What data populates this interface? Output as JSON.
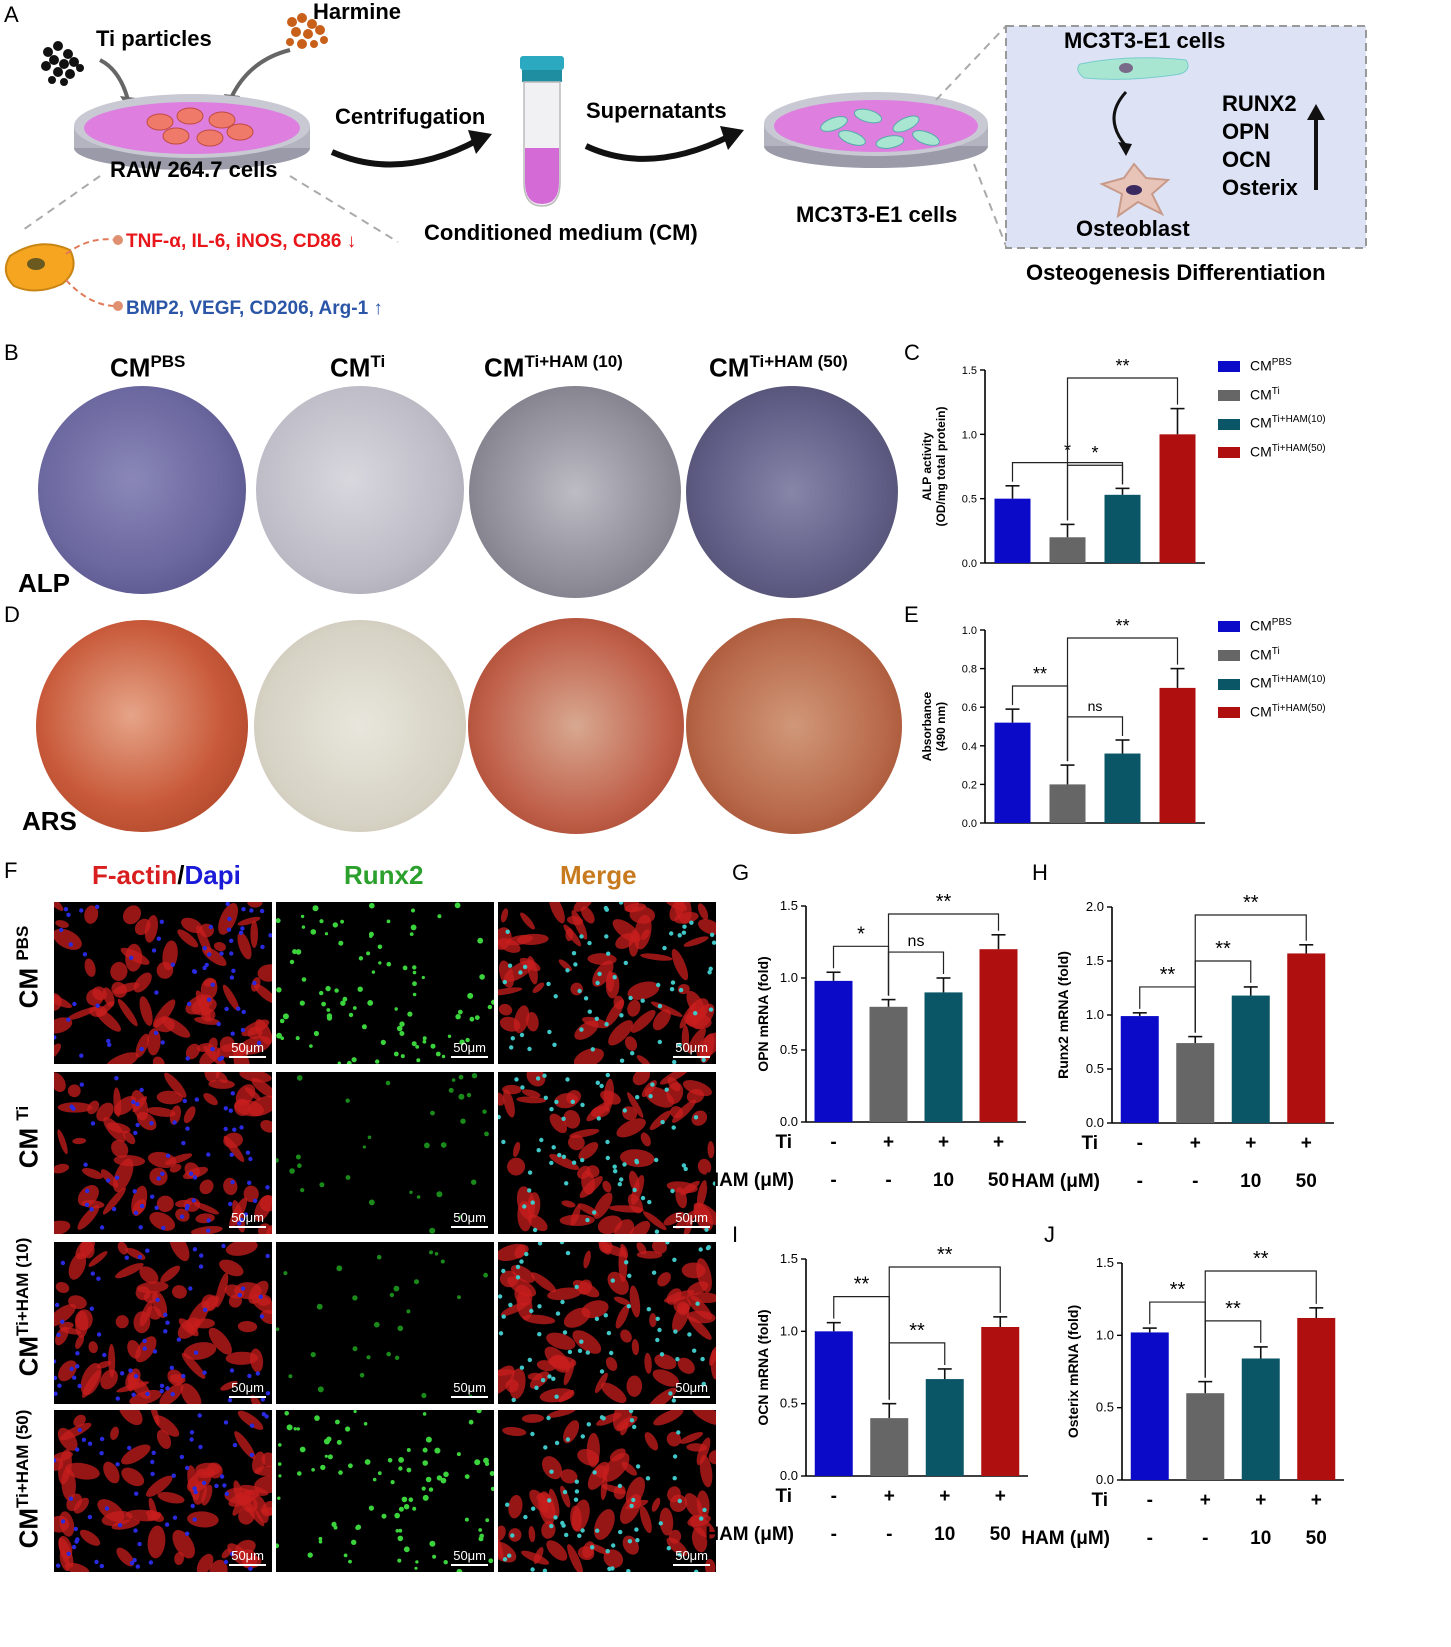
{
  "panels": {
    "A": "A",
    "B": "B",
    "C": "C",
    "D": "D",
    "E": "E",
    "F": "F",
    "G": "G",
    "H": "H",
    "I": "I",
    "J": "J"
  },
  "schematic": {
    "ti_particles": "Ti particles",
    "harmine": "Harmine",
    "raw_cells": "RAW 264.7 cells",
    "centrifugation": "Centrifugation",
    "supernatants": "Supernatants",
    "cm_label": "Conditioned medium (CM)",
    "mc3t3_dish": "MC3T3-E1 cells",
    "mc3t3_box": "MC3T3-E1 cells",
    "osteoblast": "Osteoblast",
    "markers": [
      "RUNX2",
      "OPN",
      "OCN",
      "Osterix"
    ],
    "osteo_diff": "Osteogenesis Differentiation",
    "down_markers": "TNF-α, IL-6, iNOS, CD86 ↓",
    "up_markers": "BMP2, VEGF, CD206, Arg-1 ↑",
    "colors": {
      "down": "#e8161b",
      "up": "#2b55a6",
      "box_bg": "#dde3f5"
    }
  },
  "groups": [
    {
      "base": "CM",
      "sup": "PBS"
    },
    {
      "base": "CM",
      "sup": "Ti"
    },
    {
      "base": "CM",
      "sup": "Ti+HAM (10)"
    },
    {
      "base": "CM",
      "sup": "Ti+HAM (50)"
    }
  ],
  "stain_labels": {
    "alp": "ALP",
    "ars": "ARS"
  },
  "if_headers": {
    "factin": "F-actin",
    "slash": "/",
    "dapi": "Dapi",
    "runx2": "Runx2",
    "merge": "Merge"
  },
  "if_rows": [
    {
      "base": "CM",
      "sup": "PBS"
    },
    {
      "base": "CM",
      "sup": "Ti"
    },
    {
      "base": "CM",
      "sup": "Ti+HAM (10)"
    },
    {
      "base": "CM",
      "sup": "Ti+HAM (50)"
    }
  ],
  "scale_bar": "50μm",
  "legend": [
    {
      "base": "CM",
      "sup": "PBS",
      "color": "#0a0ac8"
    },
    {
      "base": "CM",
      "sup": "Ti",
      "color": "#666666"
    },
    {
      "base": "CM",
      "sup": "Ti+HAM(10)",
      "color": "#0a5566"
    },
    {
      "base": "CM",
      "sup": "Ti+HAM(50)",
      "color": "#b00f0f"
    }
  ],
  "row_labels": {
    "ti": "Ti",
    "ham": "HAM (μM)",
    "ti_vals": [
      "-",
      "+",
      "+",
      "+"
    ],
    "ham_vals": [
      "-",
      "-",
      "10",
      "50"
    ]
  },
  "chart_data": [
    {
      "id": "C",
      "type": "bar",
      "ylabel_lines": [
        "ALP activity",
        "(OD/mg total protein)"
      ],
      "ylim": [
        0,
        1.5
      ],
      "yticks": [
        "0.0",
        "0.5",
        "1.0",
        "1.5"
      ],
      "values": [
        0.5,
        0.2,
        0.53,
        1.0
      ],
      "errors": [
        0.1,
        0.1,
        0.05,
        0.2
      ],
      "brackets": [
        {
          "a": 0,
          "b": 2,
          "label": "*"
        },
        {
          "a": 1,
          "b": 2,
          "label": "*"
        },
        {
          "a": 1,
          "b": 3,
          "label": "**"
        }
      ]
    },
    {
      "id": "E",
      "type": "bar",
      "ylabel_lines": [
        "Absorbance",
        "(490 nm)"
      ],
      "ylim": [
        0,
        1.0
      ],
      "yticks": [
        "0.0",
        "0.2",
        "0.4",
        "0.6",
        "0.8",
        "1.0"
      ],
      "values": [
        0.52,
        0.2,
        0.36,
        0.7
      ],
      "errors": [
        0.07,
        0.1,
        0.07,
        0.1
      ],
      "brackets": [
        {
          "a": 0,
          "b": 1,
          "label": "**"
        },
        {
          "a": 1,
          "b": 2,
          "label": "ns"
        },
        {
          "a": 1,
          "b": 3,
          "label": "**"
        }
      ]
    },
    {
      "id": "G",
      "type": "bar",
      "ylabel_lines": [
        "OPN mRNA (fold)"
      ],
      "ylim": [
        0,
        1.5
      ],
      "yticks": [
        "0.0",
        "0.5",
        "1.0",
        "1.5"
      ],
      "values": [
        0.98,
        0.8,
        0.9,
        1.2
      ],
      "errors": [
        0.06,
        0.05,
        0.1,
        0.1
      ],
      "brackets": [
        {
          "a": 0,
          "b": 1,
          "label": "*"
        },
        {
          "a": 1,
          "b": 2,
          "label": "ns"
        },
        {
          "a": 1,
          "b": 3,
          "label": "**"
        }
      ]
    },
    {
      "id": "H",
      "type": "bar",
      "ylabel_lines": [
        "Runx2 mRNA (fold)"
      ],
      "ylim": [
        0,
        2.0
      ],
      "yticks": [
        "0.0",
        "0.5",
        "1.0",
        "1.5",
        "2.0"
      ],
      "values": [
        0.99,
        0.74,
        1.18,
        1.57
      ],
      "errors": [
        0.03,
        0.06,
        0.08,
        0.08
      ],
      "brackets": [
        {
          "a": 0,
          "b": 1,
          "label": "**"
        },
        {
          "a": 1,
          "b": 2,
          "label": "**"
        },
        {
          "a": 1,
          "b": 3,
          "label": "**"
        }
      ]
    },
    {
      "id": "I",
      "type": "bar",
      "ylabel_lines": [
        "OCN mRNA (fold)"
      ],
      "ylim": [
        0,
        1.5
      ],
      "yticks": [
        "0.0",
        "0.5",
        "1.0",
        "1.5"
      ],
      "values": [
        1.0,
        0.4,
        0.67,
        1.03
      ],
      "errors": [
        0.06,
        0.1,
        0.07,
        0.07
      ],
      "brackets": [
        {
          "a": 0,
          "b": 1,
          "label": "**"
        },
        {
          "a": 1,
          "b": 2,
          "label": "**"
        },
        {
          "a": 1,
          "b": 3,
          "label": "**"
        }
      ]
    },
    {
      "id": "J",
      "type": "bar",
      "ylabel_lines": [
        "Osterix mRNA (fold)"
      ],
      "ylim": [
        0,
        1.5
      ],
      "yticks": [
        "0.0",
        "0.5",
        "1.0",
        "1.5"
      ],
      "values": [
        1.02,
        0.6,
        0.84,
        1.12
      ],
      "errors": [
        0.03,
        0.08,
        0.08,
        0.07
      ],
      "brackets": [
        {
          "a": 0,
          "b": 1,
          "label": "**"
        },
        {
          "a": 1,
          "b": 2,
          "label": "**"
        },
        {
          "a": 1,
          "b": 3,
          "label": "**"
        }
      ]
    }
  ]
}
